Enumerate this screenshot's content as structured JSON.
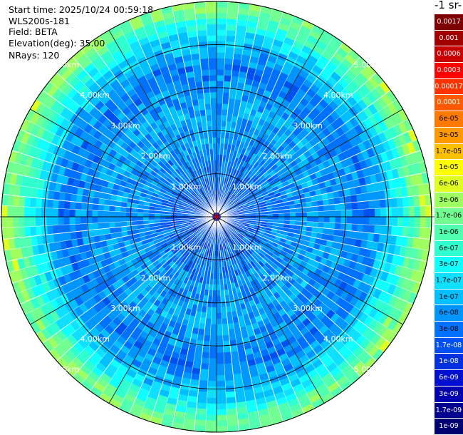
{
  "header": {
    "start_time": "Start time: 2025/10/24 00:59:18",
    "instrument": "WLS200s-181",
    "field": "Field: BETA",
    "elevation": "Elevation(deg): 35.00",
    "nrays": "NRays: 120"
  },
  "colorbar": {
    "title": "-1 sr-",
    "labels": [
      "0.0017",
      "0.001",
      "0.0006",
      "0.0003",
      "0.00017",
      "0.0001",
      "6e-05",
      "3e-05",
      "1.7e-05",
      "1e-05",
      "6e-06",
      "3e-06",
      "1.7e-06",
      "1e-06",
      "6e-07",
      "3e-07",
      "1.7e-07",
      "1e-07",
      "6e-08",
      "3e-08",
      "1.7e-08",
      "1e-08",
      "6e-09",
      "3e-09",
      "1.7e-09",
      "1e-09"
    ],
    "colors": [
      "#7f0000",
      "#a00000",
      "#c80000",
      "#ff0000",
      "#ff3300",
      "#ff5a00",
      "#ff7a00",
      "#ff9900",
      "#ffc000",
      "#ffff00",
      "#e0ff20",
      "#a0ff60",
      "#70ff90",
      "#50ffb0",
      "#30ffd0",
      "#10ffff",
      "#10e0ff",
      "#00c0ff",
      "#0096ff",
      "#0070ff",
      "#0050f0",
      "#0030e0",
      "#0010d0",
      "#0000b0",
      "#000090",
      "#000070"
    ],
    "text_colors": [
      "#fff",
      "#fff",
      "#fff",
      "#fff",
      "#fff",
      "#fff",
      "#000",
      "#000",
      "#000",
      "#000",
      "#000",
      "#000",
      "#000",
      "#000",
      "#000",
      "#000",
      "#000",
      "#000",
      "#000",
      "#000",
      "#fff",
      "#fff",
      "#fff",
      "#fff",
      "#fff",
      "#fff"
    ]
  },
  "chart_data": {
    "type": "heatmap",
    "projection": "polar PPI",
    "range_rings_km": [
      1,
      2,
      3,
      4,
      5
    ],
    "range_labels": [
      "1.00km",
      "2.00km",
      "3.00km",
      "4.00km",
      "5.00km"
    ],
    "max_range_km": 5.0,
    "n_rays": 120,
    "spokes_deg": [
      0,
      30,
      60,
      90,
      120,
      150,
      180,
      210,
      240,
      270,
      300,
      330
    ],
    "field": "BETA",
    "elevation_deg": 35.0,
    "value_profile": [
      {
        "range_km": 0.5,
        "beta": 2e-08
      },
      {
        "range_km": 1.5,
        "beta": 5e-08
      },
      {
        "range_km": 2.5,
        "beta": 8e-08
      },
      {
        "range_km": 3.5,
        "beta": 4e-08
      },
      {
        "range_km": 4.3,
        "beta": 2e-07
      },
      {
        "range_km": 4.8,
        "beta": 1.5e-06
      }
    ]
  }
}
